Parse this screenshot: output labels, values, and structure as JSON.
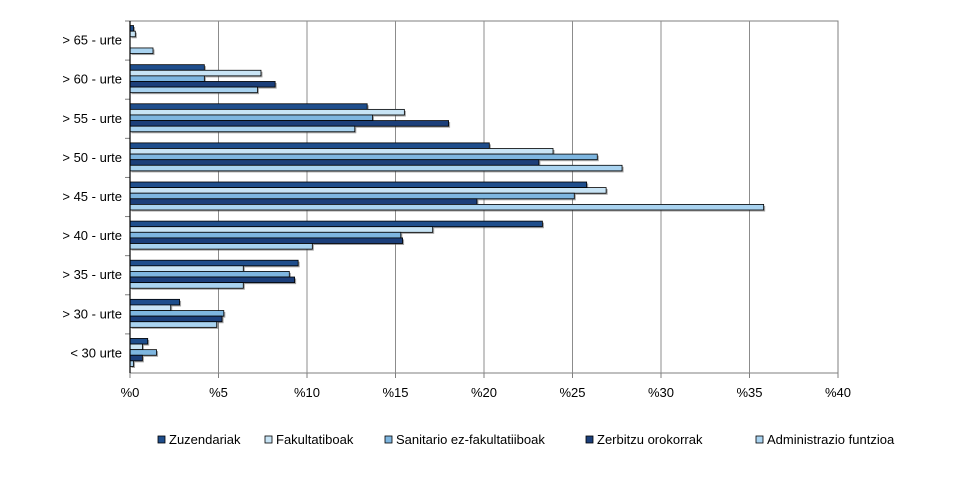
{
  "chart_data": {
    "type": "bar",
    "orientation": "horizontal",
    "categories": [
      "> 65 - urte",
      "> 60 - urte",
      "> 55 - urte",
      "> 50 - urte",
      "> 45 - urte",
      "> 40 - urte",
      "> 35 - urte",
      "> 30 - urte",
      "< 30 urte"
    ],
    "x_tick_labels": [
      "%0",
      "%5",
      "%10",
      "%15",
      "%20",
      "%25",
      "%30",
      "%35",
      "%40"
    ],
    "xlim": [
      0,
      40
    ],
    "grid": true,
    "legend_position": "bottom",
    "series": [
      {
        "name": "Zuzendariak",
        "color": "#1f4e8c",
        "values": [
          0.2,
          4.2,
          13.4,
          20.3,
          25.8,
          23.3,
          9.5,
          2.8,
          1.0
        ]
      },
      {
        "name": "Fakultatiboak",
        "color": "#c8e4f5",
        "values": [
          0.3,
          7.4,
          15.5,
          23.9,
          26.9,
          17.1,
          6.4,
          2.3,
          0.7
        ]
      },
      {
        "name": "Sanitario ez-fakultatiiboak",
        "color": "#7eb6e0",
        "values": [
          0.0,
          4.2,
          13.7,
          26.4,
          25.1,
          15.3,
          9.0,
          5.3,
          1.5
        ]
      },
      {
        "name": "Zerbitzu orokorrak",
        "color": "#1c3f7a",
        "values": [
          0.0,
          8.2,
          18.0,
          23.1,
          19.6,
          15.4,
          9.3,
          5.2,
          0.7
        ]
      },
      {
        "name": "Administrazio funtzioa",
        "color": "#a9d3f0",
        "values": [
          1.3,
          7.2,
          12.7,
          27.8,
          35.8,
          10.3,
          6.4,
          4.9,
          0.2
        ]
      }
    ]
  }
}
